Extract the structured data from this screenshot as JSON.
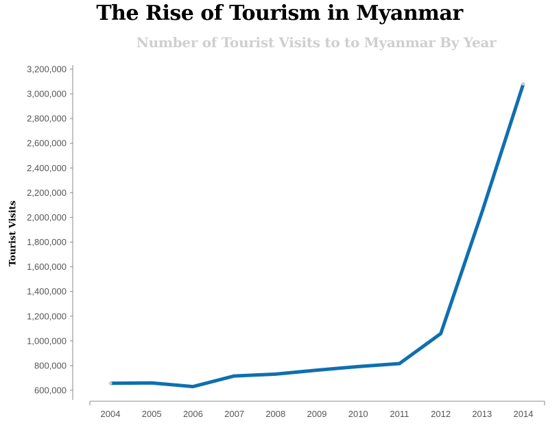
{
  "chart_data": {
    "type": "line",
    "title": "The Rise of Tourism in Myanmar",
    "subtitle": "Number of Tourist Visits to to Myanmar By Year",
    "xlabel": "",
    "ylabel": "Tourist Visits",
    "x": [
      "2004",
      "2005",
      "2006",
      "2007",
      "2008",
      "2009",
      "2010",
      "2011",
      "2012",
      "2013",
      "2014"
    ],
    "series": [
      {
        "values": [
          657000,
          660000,
          630000,
          716000,
          731000,
          763000,
          792000,
          816000,
          1059000,
          2044000,
          3081000
        ],
        "color": "#0f6fb0"
      }
    ],
    "yticks": [
      600000,
      800000,
      1000000,
      1200000,
      1400000,
      1600000,
      1800000,
      2000000,
      2200000,
      2400000,
      2600000,
      2800000,
      3000000,
      3200000
    ],
    "ytick_labels": [
      "600,000",
      "800,000",
      "1,000,000",
      "1,200,000",
      "1,400,000",
      "1,600,000",
      "1,800,000",
      "2,000,000",
      "2,200,000",
      "2,400,000",
      "2,600,000",
      "2,800,000",
      "3,000,000",
      "3,200,000"
    ],
    "ylim": [
      600000,
      3200000
    ],
    "grid": false,
    "legend": "none"
  }
}
